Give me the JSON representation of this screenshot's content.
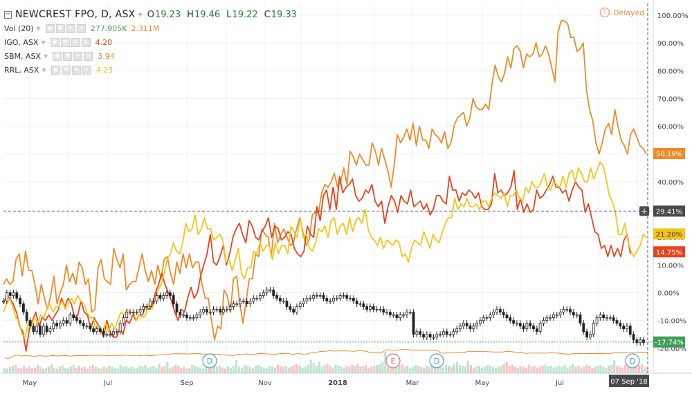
{
  "header": {
    "collapse_icon": "minus-square",
    "symbol": "NEWCREST FPO, D, ASX",
    "ohlc": [
      {
        "key": "O",
        "value": "19.23"
      },
      {
        "key": "H",
        "value": "19.46"
      },
      {
        "key": "L",
        "value": "19.22"
      },
      {
        "key": "C",
        "value": "19.33"
      }
    ],
    "delayed_label": "Delayed",
    "delayed_icon": "warning-circle"
  },
  "studies": [
    {
      "name": "Vol (20)",
      "values": [
        {
          "text": "277.905K",
          "color": "#4a9a52"
        },
        {
          "text": "2.311M",
          "color": "#f08a24"
        }
      ]
    },
    {
      "name": "IGO, ASX",
      "values": [
        {
          "text": "4.20",
          "color": "#e8431c"
        }
      ]
    },
    {
      "name": "SBM, ASX",
      "values": [
        {
          "text": "3.94",
          "color": "#f08a24"
        }
      ]
    },
    {
      "name": "RRL, ASX",
      "values": [
        {
          "text": "4.23",
          "color": "#f5c518"
        }
      ]
    }
  ],
  "study_controls": [
    "eye-icon",
    "gear-icon",
    "plus-icon",
    "close-icon"
  ],
  "chart_data": {
    "type": "line",
    "x_ticks": [
      "May",
      "Jul",
      "Sep",
      "Nov",
      "2018",
      "Mar",
      "May",
      "Jul"
    ],
    "y_ticks": [
      "100.00%",
      "90.00%",
      "80.00%",
      "70.00%",
      "60.00%",
      "50.00%",
      "40.00%",
      "30.00%",
      "20.00%",
      "10.00%",
      "0.00%",
      "-10.00%",
      "-20.00%"
    ],
    "ylim": [
      -21,
      101
    ],
    "crosshair": {
      "y": 29.41,
      "label": "29.41%"
    },
    "date_label": "07 Sep '18",
    "colors": {
      "up": "#26a69a",
      "down": "#ef5350",
      "candle_body_up": "#ffffff",
      "candle_body_down": "#222222"
    },
    "series": [
      {
        "name": "SBM, ASX",
        "color": "#f08a24",
        "last_label": "50.19%",
        "values": [
          3,
          5,
          3,
          4,
          12,
          14,
          6,
          15,
          8,
          8,
          3,
          -4,
          3,
          -2,
          -6,
          -1,
          6,
          -4,
          0,
          3,
          10,
          4,
          7,
          3,
          11,
          9,
          3,
          5,
          -7,
          -6,
          9,
          12,
          5,
          4,
          3,
          16,
          12,
          9,
          14,
          1,
          3,
          4,
          4,
          9,
          14,
          8,
          4,
          8,
          3,
          10,
          5,
          12,
          13,
          7,
          3,
          11,
          7,
          14,
          9,
          14,
          9,
          11,
          11,
          3,
          -2,
          -2,
          -10,
          -17,
          -12,
          -13,
          1,
          -1,
          -7,
          5,
          6,
          -4,
          -11,
          -3,
          5,
          5,
          14,
          13,
          23,
          21,
          20,
          13,
          25,
          18,
          21,
          23,
          20,
          17,
          18,
          23,
          27,
          22,
          17,
          19,
          28,
          29,
          29,
          36,
          39,
          38,
          40,
          43,
          38,
          40,
          45,
          39,
          51,
          49,
          46,
          50,
          48,
          46,
          46,
          54,
          51,
          46,
          52,
          48,
          44,
          38,
          46,
          57,
          54,
          56,
          59,
          55,
          61,
          53,
          60,
          55,
          55,
          52,
          59,
          57,
          56,
          54,
          58,
          52,
          54,
          60,
          63,
          64,
          65,
          60,
          63,
          70,
          67,
          66,
          66,
          68,
          66,
          75,
          82,
          78,
          76,
          79,
          85,
          81,
          88,
          89,
          87,
          81,
          86,
          85,
          86,
          90,
          85,
          86,
          89,
          86,
          81,
          76,
          94,
          98,
          98,
          97,
          92,
          92,
          87,
          88,
          90,
          73,
          66,
          62,
          54,
          50,
          54,
          59,
          61,
          57,
          66,
          60,
          55,
          53,
          50,
          57,
          59,
          56,
          53,
          52,
          50
        ]
      },
      {
        "name": "IGO, ASX",
        "color": "#e8431c",
        "last_label": "14.75%",
        "values": [
          -4,
          -1,
          -2,
          -4,
          -7,
          -12,
          -14,
          -21,
          -13,
          -10,
          -7,
          -12,
          -9,
          -10,
          -8,
          -10,
          -8,
          -6,
          -2,
          -5,
          -2,
          -4,
          -9,
          -8,
          -3,
          -7,
          -8,
          -13,
          -9,
          -11,
          -13,
          -16,
          -10,
          -14,
          -16,
          -16,
          -13,
          -15,
          -10,
          -11,
          -8,
          -10,
          -8,
          -8,
          -5,
          -6,
          -5,
          0,
          3,
          7,
          3,
          0,
          -3,
          -7,
          -10,
          -6,
          -7,
          -2,
          2,
          -2,
          0,
          6,
          10,
          14,
          21,
          11,
          10,
          13,
          17,
          10,
          14,
          20,
          23,
          25,
          21,
          18,
          26,
          24,
          20,
          19,
          22,
          24,
          27,
          20,
          24,
          23,
          19,
          20,
          22,
          21,
          16,
          14,
          13,
          15,
          24,
          21,
          20,
          31,
          26,
          35,
          37,
          30,
          38,
          30,
          42,
          36,
          38,
          39,
          41,
          35,
          33,
          34,
          37,
          36,
          39,
          33,
          31,
          33,
          25,
          31,
          35,
          33,
          29,
          35,
          33,
          32,
          37,
          31,
          32,
          33,
          30,
          32,
          28,
          30,
          35,
          35,
          33,
          32,
          42,
          37,
          37,
          33,
          36,
          35,
          37,
          36,
          34,
          36,
          31,
          30,
          30,
          32,
          43,
          36,
          37,
          35,
          36,
          38,
          44,
          30,
          34,
          29,
          32,
          29,
          30,
          37,
          34,
          35,
          37,
          39,
          42,
          38,
          38,
          36,
          37,
          33,
          37,
          40,
          38,
          37,
          29,
          32,
          27,
          22,
          21,
          16,
          17,
          13,
          17,
          13,
          16,
          13,
          19,
          21,
          14
        ],
        "offset_to_end": 27
      },
      {
        "name": "RRL, ASX",
        "color": "#f5c518",
        "last_label": "21.20%",
        "values": [
          -7,
          -4,
          -2,
          -5,
          -9,
          -10,
          -15,
          -16,
          -11,
          -12,
          -9,
          -11,
          -8,
          -9,
          -6,
          -4,
          -7,
          -5,
          -5,
          -3,
          -6,
          -4,
          -2,
          -4,
          -1,
          -3,
          -4,
          -7,
          -9,
          -9,
          -14,
          -12,
          -14,
          -11,
          -14,
          -11,
          -13,
          -10,
          -7,
          -8,
          -6,
          -7,
          -7,
          -10,
          -8,
          -9,
          -8,
          -4,
          -6,
          -3,
          1,
          3,
          7,
          12,
          14,
          18,
          15,
          14,
          18,
          25,
          22,
          23,
          28,
          21,
          23,
          27,
          23,
          23,
          19,
          20,
          21,
          19,
          11,
          12,
          8,
          12,
          16,
          7,
          5,
          9,
          9,
          15,
          14,
          18,
          15,
          17,
          17,
          12,
          18,
          14,
          17,
          17,
          14,
          24,
          22,
          20,
          27,
          20,
          21,
          16,
          15,
          18,
          23,
          22,
          24,
          20,
          26,
          27,
          21,
          24,
          25,
          21,
          27,
          22,
          26,
          27,
          25,
          30,
          23,
          20,
          19,
          17,
          20,
          16,
          19,
          18,
          17,
          19,
          18,
          13,
          14,
          11,
          16,
          19,
          18,
          17,
          22,
          19,
          16,
          21,
          19,
          18,
          22,
          25,
          27,
          27,
          34,
          30,
          32,
          31,
          34,
          31,
          31,
          32,
          30,
          33,
          33,
          31,
          34,
          36,
          35,
          34,
          36,
          31,
          35,
          35,
          37,
          34,
          33,
          38,
          36,
          40,
          38,
          38,
          40,
          43,
          38,
          37,
          40,
          39,
          38,
          42,
          38,
          43,
          44,
          40,
          45,
          43,
          40,
          40,
          45,
          41,
          44,
          47,
          46,
          41,
          35,
          33,
          29,
          21,
          21,
          25,
          19,
          15,
          13,
          15,
          17,
          21,
          20
        ],
        "offset_to_end": 4
      },
      {
        "name": "NEWCREST FPO",
        "color": "#222222",
        "last_label": "-17.74%",
        "label_color": "#3f9f58",
        "values": [
          -3,
          0,
          -1,
          0,
          -2,
          -4,
          -7,
          -10,
          -12,
          -14,
          -12,
          -15,
          -12,
          -14,
          -13,
          -11,
          -12,
          -11,
          -10,
          -11,
          -8,
          -9,
          -10,
          -11,
          -12,
          -12,
          -13,
          -14,
          -13,
          -14,
          -15,
          -15,
          -15,
          -14,
          -14,
          -11,
          -9,
          -7,
          -7,
          -7,
          -7,
          -6,
          -5,
          -5,
          -3,
          -3,
          -1,
          -2,
          -1,
          0,
          -1,
          -4,
          -7,
          -8,
          -8,
          -9,
          -9,
          -9,
          -8,
          -7,
          -6,
          -7,
          -7,
          -6,
          -6,
          -7,
          -6,
          -6,
          -5,
          -4,
          -4,
          -3,
          -3,
          -4,
          -3,
          -2,
          -2,
          -1,
          0,
          1,
          1,
          -1,
          -2,
          -3,
          -3,
          -5,
          -6,
          -7,
          -5,
          -4,
          -3,
          -2,
          -2,
          -1,
          -1,
          -1,
          -2,
          -3,
          -3,
          -2,
          -2,
          -1,
          -1,
          -2,
          -2,
          -3,
          -4,
          -4,
          -5,
          -6,
          -5,
          -6,
          -6,
          -6,
          -7,
          -7,
          -8,
          -8,
          -9,
          -8,
          -8,
          -7,
          -7,
          -15,
          -14,
          -15,
          -16,
          -15,
          -16,
          -16,
          -15,
          -15,
          -14,
          -15,
          -15,
          -14,
          -13,
          -12,
          -11,
          -12,
          -13,
          -12,
          -11,
          -10,
          -9,
          -9,
          -8,
          -7,
          -6,
          -7,
          -8,
          -9,
          -10,
          -11,
          -11,
          -12,
          -13,
          -11,
          -12,
          -13,
          -14,
          -11,
          -10,
          -9,
          -9,
          -8,
          -8,
          -7,
          -6,
          -6,
          -7,
          -8,
          -8,
          -11,
          -14,
          -16,
          -15,
          -11,
          -9,
          -8,
          -9,
          -9,
          -9,
          -10,
          -11,
          -12,
          -13,
          -12,
          -15,
          -17,
          -18,
          -17,
          -18
        ],
        "candles": true
      }
    ],
    "volume": {
      "label": "Vol (20)",
      "bars": [
        6,
        5,
        7,
        8,
        9,
        6,
        5,
        8,
        6,
        7,
        5,
        6,
        9,
        7,
        5,
        6,
        7,
        10,
        6,
        5,
        7,
        8,
        6,
        5,
        7,
        9,
        6,
        8,
        6,
        7,
        5,
        8,
        9,
        7,
        6,
        5,
        7,
        6,
        8,
        7,
        6,
        5,
        9,
        7,
        8,
        6,
        7,
        5,
        6,
        8,
        7,
        9,
        6,
        7,
        8,
        6,
        10,
        7,
        8,
        12,
        6,
        7,
        9,
        8,
        6,
        7,
        5,
        6,
        9,
        8,
        7,
        6,
        5,
        7,
        8,
        6,
        9,
        7,
        8,
        6,
        5,
        7,
        6,
        8,
        14,
        7,
        6,
        9,
        8,
        7,
        6,
        8,
        9,
        7,
        6,
        5,
        8,
        7,
        6,
        9,
        8,
        7,
        8,
        6,
        7,
        9,
        10,
        8,
        6,
        7,
        9,
        14,
        11,
        8,
        12,
        7,
        9,
        10,
        8,
        6,
        9,
        8,
        7,
        6,
        8,
        7,
        9,
        8,
        10,
        7,
        8,
        9,
        6,
        7,
        8,
        9,
        10,
        12,
        23,
        9,
        6,
        8,
        7,
        9,
        10,
        7,
        8,
        6,
        7,
        9,
        8,
        7,
        6,
        8,
        7,
        10,
        9,
        8,
        7,
        6,
        9,
        8,
        7,
        10,
        12,
        9,
        8,
        7,
        13,
        9,
        6,
        7,
        8,
        6,
        7,
        9,
        8,
        7,
        6,
        7,
        8,
        10,
        12,
        8,
        9,
        7,
        6,
        8,
        7,
        6,
        9,
        7,
        8,
        6,
        7,
        8,
        9,
        7,
        8,
        6,
        7,
        8,
        7,
        9,
        6,
        8,
        10,
        7,
        8,
        6,
        7,
        9,
        8,
        6,
        7,
        8,
        9,
        7,
        6,
        8,
        9,
        14,
        8,
        7,
        6,
        9,
        8,
        7,
        6,
        8,
        9,
        10,
        7,
        6
      ],
      "ma_color": "#f08a24"
    },
    "events": [
      {
        "label": "D",
        "at": 0.33
      },
      {
        "label": "E",
        "at": 0.615
      },
      {
        "label": "D",
        "at": 0.7
      },
      {
        "label": "D",
        "at": 0.996
      }
    ]
  }
}
